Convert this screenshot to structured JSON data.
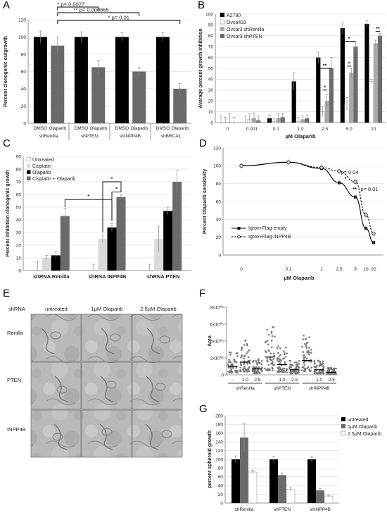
{
  "colors": {
    "black": "#000000",
    "dark_gray": "#6a6a6a",
    "mid_gray": "#a9a9a9",
    "light_gray": "#d9d9d9",
    "white": "#ffffff"
  },
  "chart_data": [
    {
      "panel": "A",
      "type": "bar",
      "ylabel": "Percent clonogenic outgrowth",
      "ylim": [
        0,
        120
      ],
      "yticks": [
        "0",
        "20",
        "40",
        "60",
        "80",
        "100",
        "120"
      ],
      "groups": [
        "shRenilla",
        "shPTEN",
        "shINPP4B",
        "shBRCA1"
      ],
      "conditions": [
        "DMSO",
        "Olaparib"
      ],
      "values": [
        [
          100,
          90
        ],
        [
          100,
          65
        ],
        [
          100,
          60
        ],
        [
          100,
          40
        ]
      ],
      "errors": [
        [
          7,
          10
        ],
        [
          6,
          8
        ],
        [
          5,
          5
        ],
        [
          5,
          6
        ]
      ],
      "annotations": [
        "* p= 0.0027",
        "** p= 0.000865",
        "* p= 0.01"
      ]
    },
    {
      "panel": "B",
      "type": "bar",
      "ylabel": "Average percent growth inhibition",
      "xlabel": "µM Olaparib",
      "ylim": [
        0,
        100
      ],
      "yticks": [
        "0",
        "10",
        "20",
        "30",
        "40",
        "50",
        "60",
        "70",
        "80",
        "90",
        "100"
      ],
      "categories": [
        "0",
        "0.001",
        "0.1",
        "1.0",
        "2.5",
        "5.0",
        "10"
      ],
      "series": [
        {
          "name": "A2780",
          "values": [
            0,
            0,
            4,
            38,
            60,
            87,
            91
          ],
          "errors": [
            6,
            6,
            3,
            8,
            5,
            5,
            3
          ]
        },
        {
          "name": "Ovca433",
          "values": [
            0,
            3,
            1,
            1,
            10,
            17,
            38
          ],
          "errors": [
            5,
            5,
            3,
            4,
            5,
            6,
            2
          ]
        },
        {
          "name": "Ovcar3 shRenilla",
          "values": [
            0,
            4,
            4,
            3,
            20,
            46,
            73
          ],
          "errors": [
            8,
            5,
            4,
            3,
            6,
            4,
            3
          ]
        },
        {
          "name": "Ovcar3 shPTEN",
          "values": [
            0,
            2,
            5,
            4,
            50,
            70,
            80
          ],
          "errors": [
            5,
            4,
            3,
            3,
            10,
            4,
            2
          ]
        }
      ],
      "significance": [
        "*",
        "**",
        "*",
        "*",
        "**"
      ]
    },
    {
      "panel": "C",
      "type": "bar",
      "ylabel": "Percent inhibition clonogenic growth",
      "ylim": [
        0,
        90
      ],
      "yticks": [
        "0",
        "10",
        "20",
        "30",
        "40",
        "50",
        "60",
        "70",
        "80",
        "90"
      ],
      "categories": [
        "shRNA Renilla",
        "shRNA INPP4B",
        "shRNA PTEN"
      ],
      "series": [
        {
          "name": "Untreated",
          "values": [
            0,
            0,
            0
          ],
          "errors": [
            7,
            5,
            5
          ]
        },
        {
          "name": "Cisplatin",
          "values": [
            10,
            25,
            25
          ],
          "errors": [
            2,
            3,
            10
          ]
        },
        {
          "name": "Olaparib",
          "values": [
            12,
            34,
            47
          ],
          "errors": [
            3,
            3,
            3
          ]
        },
        {
          "name": "Cisplatin  + Olaparib",
          "values": [
            43,
            58,
            70
          ],
          "errors": [
            6,
            2,
            9
          ]
        }
      ],
      "significance": [
        "*",
        "*",
        "*"
      ]
    },
    {
      "panel": "D",
      "type": "line",
      "ylabel": "Percent Olaparib sensitivity",
      "xlabel": "µM Olaparib",
      "ylim": [
        0,
        120
      ],
      "yticks": [
        "0",
        "20",
        "40",
        "60",
        "80",
        "100",
        "120"
      ],
      "xticks": [
        "0",
        "0.1",
        "1",
        "2.5",
        "5",
        "10",
        "20"
      ],
      "series": [
        {
          "name": "Igrov+Flag-empty",
          "x": [
            0,
            0.1,
            1,
            2.5,
            5,
            10,
            20
          ],
          "y": [
            100,
            104,
            97,
            81,
            65,
            30,
            14
          ]
        },
        {
          "name": "Igrov+Flag-INPP4B",
          "x": [
            0,
            0.1,
            1,
            2.5,
            5,
            10,
            20
          ],
          "y": [
            100,
            104,
            98,
            94,
            82,
            45,
            24
          ]
        }
      ],
      "annotations": [
        "p= 0.04",
        "*",
        "**",
        "p= 0.01"
      ]
    },
    {
      "panel": "F",
      "type": "scatter",
      "ylabel": "Area",
      "yticks": [
        "0",
        "2x10⁰⁶",
        "4x10⁰⁶",
        "6x10⁰⁶",
        "8x10⁰⁶"
      ],
      "ylim": [
        0,
        8000000
      ],
      "groups": [
        "shRenilla",
        "shPTEN",
        "shINPP4B"
      ],
      "doses": [
        "-",
        "1.0",
        "2.5"
      ],
      "medians": [
        [
          1000000,
          1500000,
          700000
        ],
        [
          2100000,
          1200000,
          600000
        ],
        [
          1700000,
          600000,
          300000
        ]
      ]
    },
    {
      "panel": "G",
      "type": "bar",
      "ylabel": "percent spheroid growth",
      "ylim": [
        0,
        200
      ],
      "yticks": [
        "0",
        "20",
        "40",
        "60",
        "80",
        "100",
        "120",
        "140",
        "160",
        "180",
        "200"
      ],
      "categories": [
        "shRenilla",
        "shPTEN",
        "shINPP4B"
      ],
      "series": [
        {
          "name": "untreated",
          "values": [
            100,
            100,
            100
          ],
          "errors": [
            8,
            7,
            7
          ]
        },
        {
          "name": "1µM Olaparib",
          "values": [
            150,
            64,
            29
          ],
          "errors": [
            33,
            5,
            4
          ]
        },
        {
          "name": "2.5µM Olaparib",
          "values": [
            71,
            31,
            16
          ],
          "errors": [
            4,
            4,
            2
          ]
        }
      ]
    }
  ],
  "panels": {
    "A": "A",
    "B": "B",
    "C": "C",
    "D": "D",
    "E": "E",
    "F": "F",
    "G": "G"
  },
  "panel_e": {
    "row_header": "shRNA",
    "columns": [
      "untreated",
      "1µM Olaparib",
      "2.5µM Olaparib"
    ],
    "rows": [
      "Renilla",
      "PTEN",
      "INPP4B"
    ]
  }
}
